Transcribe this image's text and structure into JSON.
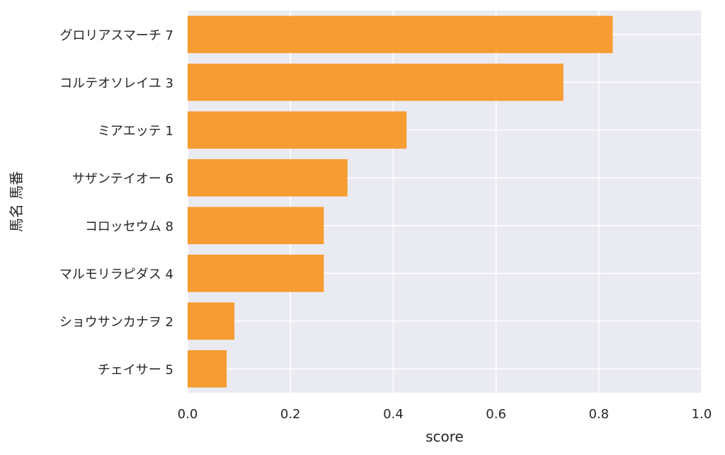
{
  "chart_data": {
    "type": "bar",
    "orientation": "horizontal",
    "categories": [
      "グロリアスマーチ 7",
      "コルテオソレイユ 3",
      "ミアエッテ 1",
      "サザンテイオー 6",
      "コロッセウム 8",
      "マルモリラピダス 4",
      "ショウサンカナヲ 2",
      "チェイサー 5"
    ],
    "values": [
      0.827,
      0.731,
      0.426,
      0.311,
      0.265,
      0.265,
      0.091,
      0.076
    ],
    "xlabel": "score",
    "ylabel": "馬名 馬番",
    "xlim": [
      0.0,
      1.0
    ],
    "xticks": [
      "0.0",
      "0.2",
      "0.4",
      "0.6",
      "0.8",
      "1.0"
    ],
    "grid": true,
    "colors": {
      "bar": "#f7941d",
      "plot_background": "#eaeaf2",
      "grid": "#ffffff"
    }
  }
}
